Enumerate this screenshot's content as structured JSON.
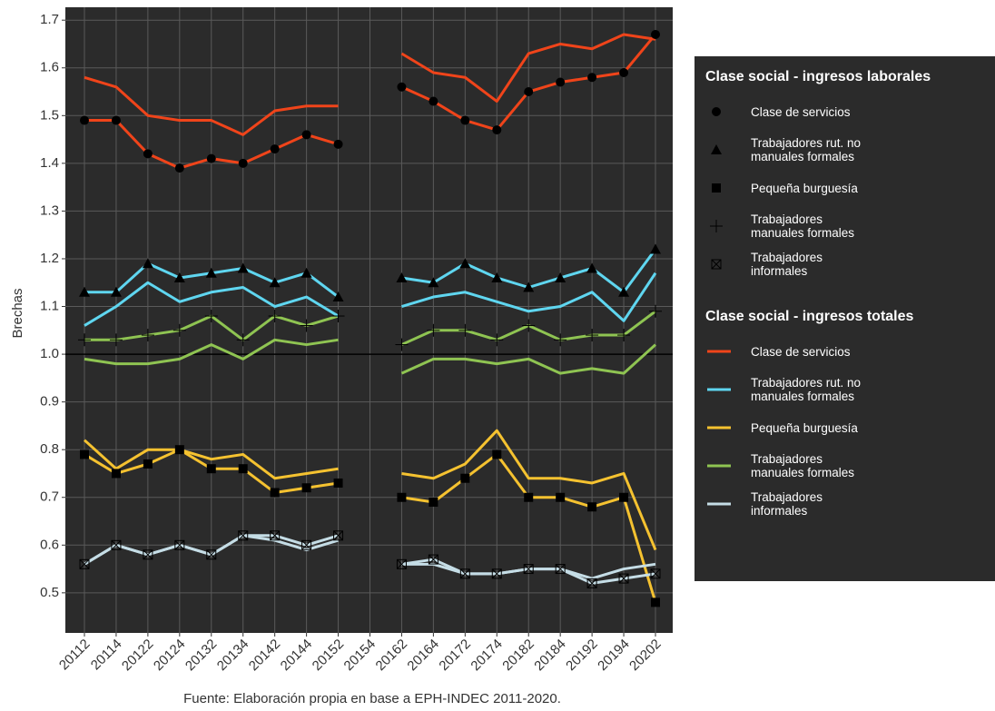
{
  "chart_data": {
    "type": "line",
    "y_label": "Brechas",
    "caption": "Fuente: Elaboración propia en base a EPH-INDEC 2011-2020.",
    "categories": [
      "20112",
      "20114",
      "20122",
      "20124",
      "20132",
      "20134",
      "20142",
      "20144",
      "20152",
      "20154",
      "20162",
      "20164",
      "20172",
      "20174",
      "20182",
      "20184",
      "20192",
      "20194",
      "20202"
    ],
    "ylim": [
      0.416,
      1.727
    ],
    "yticks": [
      {
        "value": 0.5,
        "label": "0.5"
      },
      {
        "value": 0.6,
        "label": "0.6"
      },
      {
        "value": 0.7,
        "label": "0.7"
      },
      {
        "value": 0.8,
        "label": "0.8"
      },
      {
        "value": 0.9,
        "label": "0.9"
      },
      {
        "value": 1.0,
        "label": "1.0"
      },
      {
        "value": 1.1,
        "label": "1.1"
      },
      {
        "value": 1.2,
        "label": "1.2"
      },
      {
        "value": 1.3,
        "label": "1.3"
      },
      {
        "value": 1.4,
        "label": "1.4"
      },
      {
        "value": 1.5,
        "label": "1.5"
      },
      {
        "value": 1.6,
        "label": "1.6"
      },
      {
        "value": 1.7,
        "label": "1.7"
      }
    ],
    "hline": 1,
    "grid": true,
    "legend_titles": [
      "Clase social - ingresos laborales",
      "Clase social - ingresos totales"
    ],
    "series": [
      {
        "name": "Clase de servicios",
        "color": "#f0441a",
        "marker": "circle",
        "values": [
          1.49,
          1.49,
          1.42,
          1.39,
          1.41,
          1.4,
          1.43,
          1.46,
          1.44,
          null,
          1.56,
          1.53,
          1.49,
          1.47,
          1.55,
          1.57,
          1.58,
          1.59,
          1.67
        ]
      },
      {
        "name": "Trabajadores rut. no manuales formales",
        "color": "#5fd6f0",
        "marker": "triangle",
        "values": [
          1.13,
          1.13,
          1.19,
          1.16,
          1.17,
          1.18,
          1.15,
          1.17,
          1.12,
          null,
          1.16,
          1.15,
          1.19,
          1.16,
          1.14,
          1.16,
          1.18,
          1.13,
          1.22
        ]
      },
      {
        "name": "Pequeña burguesía",
        "color": "#f5c230",
        "marker": "square",
        "values": [
          0.79,
          0.75,
          0.77,
          0.8,
          0.76,
          0.76,
          0.71,
          0.72,
          0.73,
          null,
          0.7,
          0.69,
          0.74,
          0.79,
          0.7,
          0.7,
          0.68,
          0.7,
          0.48
        ]
      },
      {
        "name": "Trabajadores manuales formales",
        "color": "#8fc452",
        "marker": "plus",
        "values": [
          1.03,
          1.03,
          1.04,
          1.05,
          1.08,
          1.03,
          1.08,
          1.06,
          1.08,
          null,
          1.02,
          1.05,
          1.05,
          1.03,
          1.06,
          1.03,
          1.04,
          1.04,
          1.09
        ]
      },
      {
        "name": "Trabajadores informales",
        "color": "#c5dde6",
        "marker": "boxx",
        "values": [
          0.56,
          0.6,
          0.58,
          0.6,
          0.58,
          0.62,
          0.62,
          0.6,
          0.62,
          null,
          0.56,
          0.57,
          0.54,
          0.54,
          0.55,
          0.55,
          0.52,
          0.53,
          0.54
        ]
      },
      {
        "name": "Clase de servicios",
        "color": "#f0441a",
        "values": [
          1.58,
          1.56,
          1.5,
          1.49,
          1.49,
          1.46,
          1.51,
          1.52,
          1.52,
          null,
          1.63,
          1.59,
          1.58,
          1.53,
          1.63,
          1.65,
          1.64,
          1.67,
          1.66
        ]
      },
      {
        "name": "Trabajadores rut. no manuales formales",
        "color": "#5fd6f0",
        "values": [
          1.06,
          1.1,
          1.15,
          1.11,
          1.13,
          1.14,
          1.1,
          1.12,
          1.08,
          null,
          1.1,
          1.12,
          1.13,
          1.11,
          1.09,
          1.1,
          1.13,
          1.07,
          1.17
        ]
      },
      {
        "name": "Pequeña burguesía",
        "color": "#f5c230",
        "values": [
          0.82,
          0.76,
          0.8,
          0.8,
          0.78,
          0.79,
          0.74,
          0.75,
          0.76,
          null,
          0.75,
          0.74,
          0.77,
          0.84,
          0.74,
          0.74,
          0.73,
          0.75,
          0.59
        ]
      },
      {
        "name": "Trabajadores manuales formales",
        "color": "#8fc452",
        "values": [
          0.99,
          0.98,
          0.98,
          0.99,
          1.02,
          0.99,
          1.03,
          1.02,
          1.03,
          null,
          0.96,
          0.99,
          0.99,
          0.98,
          0.99,
          0.96,
          0.97,
          0.96,
          1.02
        ]
      },
      {
        "name": "Trabajadores informales",
        "color": "#c5dde6",
        "values": [
          0.56,
          0.6,
          0.58,
          0.6,
          0.58,
          0.62,
          0.61,
          0.59,
          0.61,
          null,
          0.56,
          0.56,
          0.54,
          0.54,
          0.55,
          0.55,
          0.53,
          0.55,
          0.56
        ]
      }
    ]
  }
}
